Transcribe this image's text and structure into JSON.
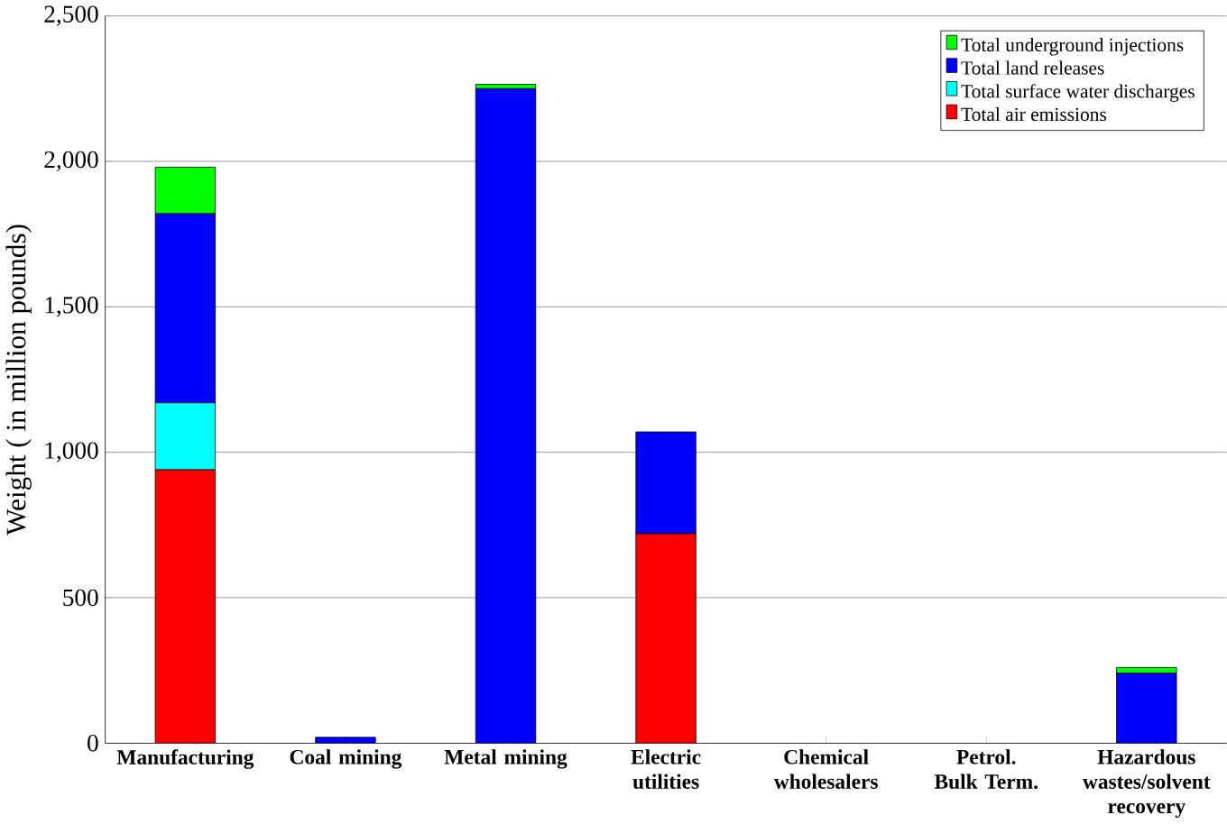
{
  "chart_data": {
    "type": "bar",
    "stacked": true,
    "ylabel": "Weight ( in million pounds)",
    "categories": [
      "Manufacturing",
      "Coal mining",
      "Metal mining",
      "Electric utilities",
      "Chemical wholesalers",
      "Petrol. Bulk Term.",
      "Hazardous wastes/solvent recovery"
    ],
    "series": [
      {
        "name": "Total air emissions",
        "color": "#ff0000",
        "values": [
          940,
          0,
          0,
          720,
          0,
          0,
          0
        ]
      },
      {
        "name": "Total surface water discharges",
        "color": "#00ffff",
        "values": [
          230,
          0,
          0,
          0,
          0,
          0,
          0
        ]
      },
      {
        "name": "Total land releases",
        "color": "#0000ff",
        "values": [
          650,
          20,
          2250,
          350,
          0,
          0,
          240
        ]
      },
      {
        "name": "Total underground injections",
        "color": "#00ff00",
        "values": [
          160,
          null,
          15,
          0,
          0,
          0,
          20
        ]
      }
    ],
    "ylim": [
      0,
      2500
    ],
    "yticks": [
      {
        "value": 0,
        "label": "0"
      },
      {
        "value": 500,
        "label": "500"
      },
      {
        "value": 1000,
        "label": "1,000"
      },
      {
        "value": 1500,
        "label": "1,500"
      },
      {
        "value": 2000,
        "label": "2,000"
      },
      {
        "value": 2500,
        "label": "2,500"
      }
    ],
    "grid": "y",
    "legend": "top right"
  }
}
